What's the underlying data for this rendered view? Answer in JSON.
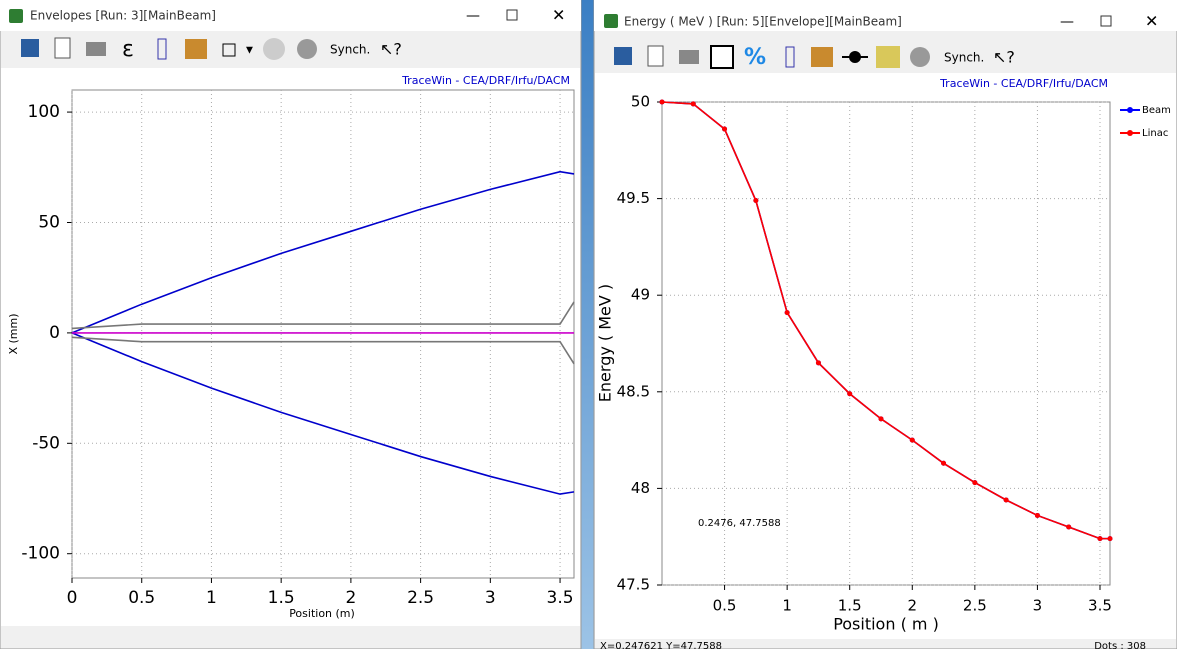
{
  "windows": [
    {
      "title": "Envelopes [Run: 3][MainBeam]",
      "toolbar": [
        "ε",
        "Synch."
      ],
      "credit": "TraceWin - CEA/DRF/Irfu/DACM"
    },
    {
      "title": "Energy ( MeV ) [Run: 5][Envelope][MainBeam]",
      "toolbar": [
        "%",
        "Synch."
      ],
      "credit": "TraceWin - CEA/DRF/Irfu/DACM",
      "status": [
        "X=0.247621  Y=47.7588",
        "Dots : 308"
      ]
    }
  ],
  "chart_data": [
    {
      "type": "line",
      "x_label": "Position (m)",
      "y_label": "X (mm)",
      "x": [
        0,
        0.5,
        1,
        1.5,
        2,
        2.5,
        3,
        3.5,
        3.6
      ],
      "xlim": [
        0,
        3.6
      ],
      "ylim": [
        -111,
        110
      ],
      "xticks": [
        0,
        0.5,
        1,
        1.5,
        2,
        2.5,
        3,
        3.5
      ],
      "yticks": [
        -100,
        -50,
        0,
        50,
        100
      ],
      "grid": true,
      "series": [
        {
          "color": "#0000cc",
          "values": [
            0,
            13,
            25,
            36,
            46,
            56,
            65,
            73,
            72
          ]
        },
        {
          "color": "#0000cc",
          "values": [
            0,
            -13,
            -25,
            -36,
            -46,
            -56,
            -65,
            -73,
            -72
          ]
        },
        {
          "color": "#777777",
          "values": [
            2,
            4,
            4,
            4,
            4,
            4,
            4,
            4,
            14
          ]
        },
        {
          "color": "#777777",
          "values": [
            -2,
            -4,
            -4,
            -4,
            -4,
            -4,
            -4,
            -4,
            -14
          ]
        },
        {
          "color": "#cc00cc",
          "values": [
            0,
            0,
            0,
            0,
            0,
            0,
            0,
            0,
            0
          ]
        }
      ]
    },
    {
      "type": "line",
      "x_label": "Position ( m )",
      "y_label": "Energy ( MeV )",
      "x": [
        0,
        0.25,
        0.5,
        0.75,
        1,
        1.25,
        1.5,
        1.75,
        2,
        2.25,
        2.5,
        2.75,
        3,
        3.25,
        3.5,
        3.58
      ],
      "xlim": [
        0,
        3.58
      ],
      "ylim": [
        47.5,
        50
      ],
      "xticks": [
        0.5,
        1,
        1.5,
        2,
        2.5,
        3,
        3.5
      ],
      "yticks": [
        47.5,
        48,
        48.5,
        49,
        49.5,
        50
      ],
      "grid": true,
      "legend": "top-right",
      "markers": true,
      "annotation": "0.2476, 47.7588",
      "series": [
        {
          "name": "Beam",
          "color": "#0000ff",
          "values": [
            50,
            49.99,
            49.86,
            49.49,
            48.91,
            48.65,
            48.49,
            48.36,
            48.25,
            48.13,
            48.03,
            47.94,
            47.86,
            47.8,
            47.74,
            47.74
          ]
        },
        {
          "name": "Linac",
          "color": "#ff0000",
          "values": [
            50,
            49.99,
            49.86,
            49.49,
            48.91,
            48.65,
            48.49,
            48.36,
            48.25,
            48.13,
            48.03,
            47.94,
            47.86,
            47.8,
            47.74,
            47.74
          ]
        }
      ]
    }
  ]
}
